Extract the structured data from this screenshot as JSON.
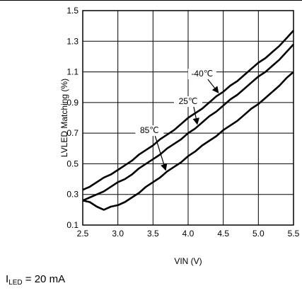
{
  "chart_data": {
    "type": "line",
    "xlabel": "VIN (V)",
    "ylabel": "LVLED Matching (%)",
    "xlim": [
      2.5,
      5.5
    ],
    "ylim": [
      0.1,
      1.5
    ],
    "xticks": [
      "2.5",
      "3.0",
      "3.5",
      "4.0",
      "4.5",
      "5.0",
      "5.5"
    ],
    "yticks": [
      "0.1",
      "0.3",
      "0.5",
      "0.7",
      "0.9",
      "1.1",
      "1.3",
      "1.5"
    ],
    "grid": true,
    "series": [
      {
        "name": "-40℃",
        "x": [
          2.5,
          2.6,
          2.7,
          2.8,
          2.9,
          3.0,
          3.1,
          3.2,
          3.3,
          3.4,
          3.5,
          3.6,
          3.7,
          3.8,
          3.9,
          4.0,
          4.1,
          4.2,
          4.3,
          4.4,
          4.5,
          4.6,
          4.7,
          4.8,
          4.9,
          5.0,
          5.1,
          5.2,
          5.3,
          5.4,
          5.5
        ],
        "y": [
          0.33,
          0.35,
          0.38,
          0.41,
          0.43,
          0.46,
          0.49,
          0.52,
          0.56,
          0.59,
          0.62,
          0.66,
          0.69,
          0.72,
          0.76,
          0.8,
          0.83,
          0.86,
          0.9,
          0.94,
          0.97,
          1.01,
          1.04,
          1.08,
          1.12,
          1.16,
          1.19,
          1.23,
          1.27,
          1.32,
          1.37
        ]
      },
      {
        "name": "25℃",
        "x": [
          2.5,
          2.6,
          2.7,
          2.8,
          2.9,
          3.0,
          3.1,
          3.2,
          3.3,
          3.4,
          3.5,
          3.6,
          3.7,
          3.8,
          3.9,
          4.0,
          4.1,
          4.2,
          4.3,
          4.4,
          4.5,
          4.6,
          4.7,
          4.8,
          4.9,
          5.0,
          5.1,
          5.2,
          5.3,
          5.4,
          5.5
        ],
        "y": [
          0.26,
          0.28,
          0.3,
          0.32,
          0.35,
          0.38,
          0.4,
          0.43,
          0.47,
          0.5,
          0.53,
          0.56,
          0.6,
          0.63,
          0.66,
          0.7,
          0.73,
          0.77,
          0.81,
          0.84,
          0.88,
          0.92,
          0.95,
          0.99,
          1.03,
          1.07,
          1.1,
          1.14,
          1.18,
          1.23,
          1.28
        ]
      },
      {
        "name": "85℃",
        "x": [
          2.5,
          2.6,
          2.7,
          2.8,
          2.9,
          3.0,
          3.1,
          3.2,
          3.3,
          3.4,
          3.5,
          3.6,
          3.7,
          3.8,
          3.9,
          4.0,
          4.1,
          4.2,
          4.3,
          4.4,
          4.5,
          4.6,
          4.7,
          4.8,
          4.9,
          5.0,
          5.1,
          5.2,
          5.3,
          5.4,
          5.5
        ],
        "y": [
          0.26,
          0.25,
          0.22,
          0.2,
          0.22,
          0.23,
          0.25,
          0.28,
          0.31,
          0.35,
          0.38,
          0.41,
          0.45,
          0.48,
          0.51,
          0.55,
          0.58,
          0.62,
          0.65,
          0.68,
          0.72,
          0.75,
          0.78,
          0.82,
          0.86,
          0.89,
          0.93,
          0.97,
          1.01,
          1.06,
          1.1
        ]
      }
    ],
    "annotations": [
      {
        "text": "-40℃",
        "series": 0,
        "at_x": 4.45,
        "label_x": 4.2,
        "label_y": 1.07
      },
      {
        "text": "25℃",
        "series": 1,
        "at_x": 4.15,
        "label_x": 4.0,
        "label_y": 0.89
      },
      {
        "text": "85℃",
        "series": 2,
        "at_x": 3.7,
        "label_x": 3.45,
        "label_y": 0.7
      }
    ]
  },
  "caption": {
    "symbol": "I",
    "subscript": "LED",
    "rest": " = 20 mA"
  }
}
